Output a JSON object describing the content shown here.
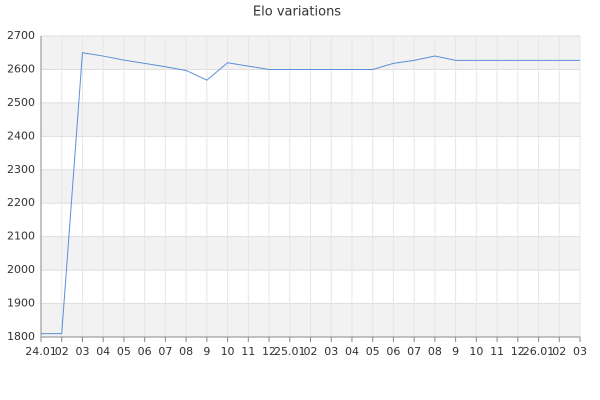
{
  "chart_data": {
    "type": "line",
    "title": "Elo variations",
    "categories": [
      "24.01",
      "02",
      "03",
      "04",
      "05",
      "06",
      "07",
      "08",
      "9",
      "10",
      "11",
      "12",
      "25.01",
      "02",
      "03",
      "04",
      "05",
      "06",
      "07",
      "08",
      "9",
      "10",
      "11",
      "12",
      "26.01",
      "02",
      "03"
    ],
    "values": [
      1810,
      1810,
      2650,
      2640,
      2628,
      2618,
      2608,
      2597,
      2568,
      2620,
      2610,
      2600,
      2600,
      2600,
      2600,
      2600,
      2600,
      2618,
      2627,
      2640,
      2627,
      2627,
      2627,
      2627,
      2627,
      2627,
      2627
    ],
    "color": "#5b8fd9",
    "ylim": [
      1800,
      2700
    ],
    "yticks": [
      1800,
      1900,
      2000,
      2100,
      2200,
      2300,
      2400,
      2500,
      2600,
      2700
    ],
    "grid": true
  }
}
